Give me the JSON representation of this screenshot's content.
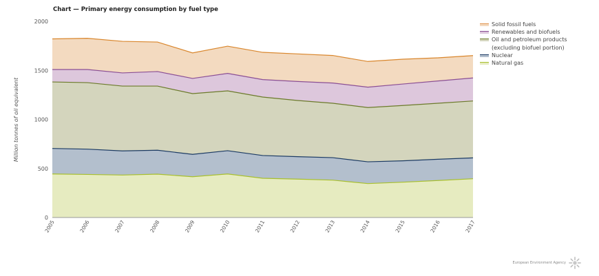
{
  "header": {
    "title": "Chart — Primary energy consumption by fuel type"
  },
  "footer": {
    "organization": "European Environment Agency"
  },
  "chart_data": {
    "type": "area",
    "stacked": true,
    "title": "Chart — Primary energy consumption by fuel type",
    "xlabel": "",
    "ylabel": "Million tonnes of oil equivalent",
    "ylim": [
      0,
      2000
    ],
    "yticks": [
      "0",
      "500",
      "1000",
      "1500",
      "2000"
    ],
    "grid": false,
    "legend_position": "right",
    "categories": [
      "2005",
      "2006",
      "2007",
      "2008",
      "2009",
      "2010",
      "2011",
      "2012",
      "2013",
      "2014",
      "2015",
      "2016",
      "2017"
    ],
    "series": [
      {
        "name": "Natural gas",
        "line_color": "#a8bf2c",
        "fill_color": "#e6ebc0",
        "values": [
          444,
          439,
          433,
          442,
          416,
          444,
          400,
          391,
          381,
          346,
          360,
          377,
          395
        ]
      },
      {
        "name": "Nuclear",
        "line_color": "#1b3a63",
        "fill_color": "#b3bfcd",
        "values": [
          260,
          258,
          246,
          244,
          228,
          237,
          232,
          229,
          229,
          222,
          218,
          217,
          213
        ]
      },
      {
        "name": "Oil and petroleum products (excluding biofuel portion)",
        "line_color": "#6b7a2a",
        "fill_color": "#d4d5bd",
        "values": [
          678,
          678,
          661,
          654,
          619,
          610,
          596,
          573,
          555,
          553,
          564,
          571,
          580
        ]
      },
      {
        "name": "Renewables and biofuels",
        "line_color": "#8a4e94",
        "fill_color": "#ddc7dc",
        "values": [
          127,
          134,
          134,
          148,
          155,
          178,
          178,
          194,
          206,
          208,
          219,
          227,
          235
        ]
      },
      {
        "name": "Solid fossil fuels",
        "line_color": "#d9862c",
        "fill_color": "#f3dac0",
        "values": [
          312,
          318,
          322,
          301,
          260,
          278,
          278,
          281,
          281,
          262,
          253,
          236,
          228
        ]
      }
    ]
  },
  "legend": {
    "items": [
      {
        "label": "Solid fossil fuels",
        "line_color": "#e0924a",
        "fill_color": "#f3dac0"
      },
      {
        "label": "Renewables and biofuels",
        "line_color": "#8a4e94",
        "fill_color": "#ddc7dc"
      },
      {
        "label": "Oil and petroleum products",
        "label2": "(excluding biofuel portion)",
        "line_color": "#6b7a2a",
        "fill_color": "#d4d5bd"
      },
      {
        "label": "Nuclear",
        "line_color": "#1b3a63",
        "fill_color": "#b3bfcd"
      },
      {
        "label": "Natural gas",
        "line_color": "#a8bf2c",
        "fill_color": "#e6ebc0"
      }
    ]
  }
}
